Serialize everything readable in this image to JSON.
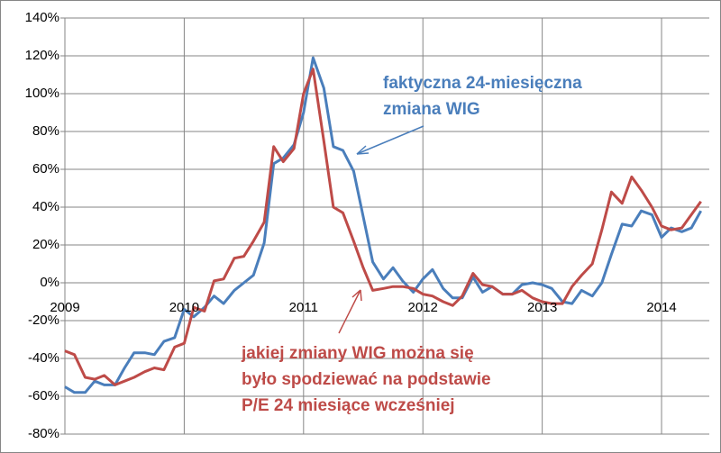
{
  "chart_data": {
    "type": "line",
    "x": [
      2009.0,
      2009.08,
      2009.17,
      2009.25,
      2009.33,
      2009.42,
      2009.5,
      2009.58,
      2009.67,
      2009.75,
      2009.83,
      2009.92,
      2010.0,
      2010.08,
      2010.17,
      2010.25,
      2010.33,
      2010.42,
      2010.5,
      2010.58,
      2010.67,
      2010.75,
      2010.83,
      2010.92,
      2011.0,
      2011.08,
      2011.17,
      2011.25,
      2011.33,
      2011.42,
      2011.5,
      2011.58,
      2011.67,
      2011.75,
      2011.83,
      2011.92,
      2012.0,
      2012.08,
      2012.17,
      2012.25,
      2012.33,
      2012.42,
      2012.5,
      2012.58,
      2012.67,
      2012.75,
      2012.83,
      2012.92,
      2013.0,
      2013.08,
      2013.17,
      2013.25,
      2013.33,
      2013.42,
      2013.5,
      2013.58,
      2013.67,
      2013.75,
      2013.83,
      2013.92,
      2014.0,
      2014.08,
      2014.17,
      2014.25,
      2014.33
    ],
    "series": [
      {
        "color": "#4a7ebb",
        "values": [
          -55,
          -58,
          -58,
          -52,
          -54,
          -54,
          -45,
          -37,
          -37,
          -38,
          -31,
          -29,
          -14,
          -18,
          -13,
          -7,
          -11,
          -4,
          0,
          4,
          21,
          63,
          66,
          73,
          90,
          119,
          103,
          72,
          70,
          59,
          35,
          11,
          2,
          8,
          1,
          -5,
          2,
          7,
          -3,
          -8,
          -8,
          3,
          -5,
          -2,
          -6,
          -6,
          -1,
          0,
          -1,
          -3,
          -10,
          -11,
          -4,
          -7,
          0,
          15,
          31,
          30,
          38,
          36,
          24,
          29,
          27,
          29,
          38
        ]
      },
      {
        "color": "#be4b48",
        "values": [
          -36,
          -38,
          -50,
          -51,
          -49,
          -54,
          -52,
          -50,
          -47,
          -45,
          -46,
          -34,
          -32,
          -13,
          -15,
          1,
          2,
          13,
          14,
          22,
          32,
          72,
          64,
          71,
          100,
          113,
          75,
          40,
          37,
          22,
          8,
          -4,
          -3,
          -2,
          -2,
          -3,
          -6,
          -7,
          -10,
          -12,
          -7,
          5,
          -1,
          -2,
          -6,
          -6,
          -4,
          -8,
          -10,
          -11,
          -11,
          -2,
          4,
          10,
          28,
          48,
          42,
          56,
          49,
          40,
          30,
          28,
          29,
          36,
          43
        ]
      }
    ],
    "xlim": [
      2009,
      2014.4
    ],
    "xticks": [
      2009,
      2010,
      2011,
      2012,
      2013,
      2014
    ],
    "ylim": [
      -80,
      140
    ],
    "yticks": [
      {
        "value": -80,
        "label": "-80%"
      },
      {
        "value": -60,
        "label": "-60%"
      },
      {
        "value": -40,
        "label": "-40%"
      },
      {
        "value": -20,
        "label": "-20%"
      },
      {
        "value": 0,
        "label": "0%"
      },
      {
        "value": 20,
        "label": "20%"
      },
      {
        "value": 40,
        "label": "40%"
      },
      {
        "value": 60,
        "label": "60%"
      },
      {
        "value": 80,
        "label": "80%"
      },
      {
        "value": 100,
        "label": "100%"
      },
      {
        "value": 120,
        "label": "120%"
      },
      {
        "value": 140,
        "label": "140%"
      }
    ],
    "grid": true,
    "annotations": [
      {
        "lines": [
          "faktyczna 24-miesięczna",
          "zmiana WIG"
        ],
        "color": "#4a7ebb"
      },
      {
        "lines": [
          "jakiej zmiany WIG można się",
          "było spodziewać na podstawie",
          "P/E 24 miesiące wcześniej"
        ],
        "color": "#be4b48"
      }
    ]
  }
}
